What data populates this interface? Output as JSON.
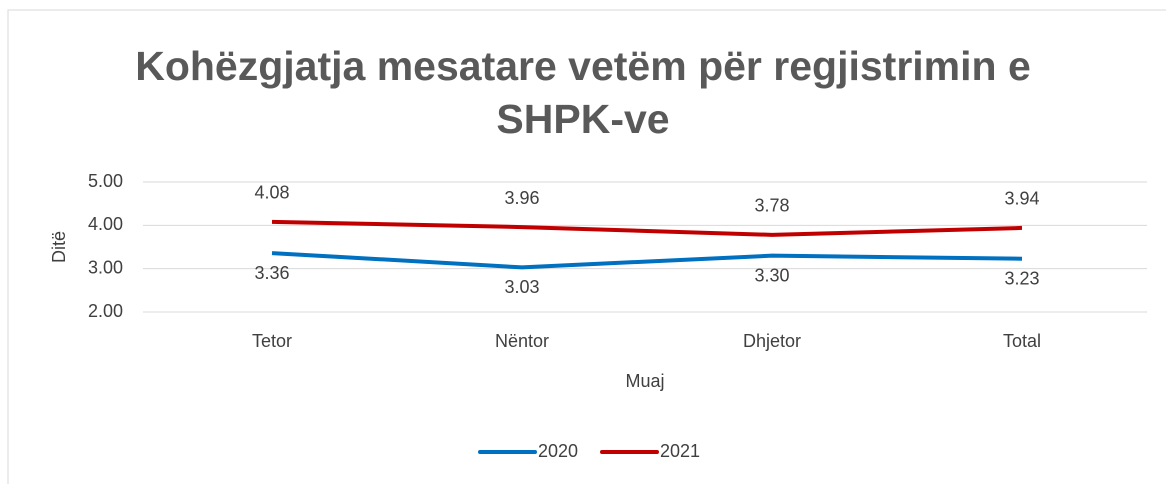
{
  "chart_data": {
    "type": "line",
    "title": "Kohëzgjatja mesatare vetëm për regjistrimin e SHPK-ve",
    "x_label": "Muaj",
    "y_label": "Ditë",
    "categories": [
      "Tetor",
      "Nëntor",
      "Dhjetor",
      "Total"
    ],
    "series": [
      {
        "name": "2020",
        "color": "#0070c0",
        "values": [
          3.36,
          3.03,
          3.3,
          3.23
        ],
        "value_labels": [
          "3.36",
          "3.03",
          "3.30",
          "3.23"
        ]
      },
      {
        "name": "2021",
        "color": "#c00000",
        "values": [
          4.08,
          3.96,
          3.78,
          3.94
        ],
        "value_labels": [
          "4.08",
          "3.96",
          "3.78",
          "3.94"
        ]
      }
    ],
    "ylim": [
      2,
      5
    ],
    "yticks": [
      {
        "value": 2,
        "label": "2.00"
      },
      {
        "value": 3,
        "label": "3.00"
      },
      {
        "value": 4,
        "label": "4.00"
      },
      {
        "value": 5,
        "label": "5.00"
      }
    ],
    "grid": true,
    "legend": "bottom"
  }
}
